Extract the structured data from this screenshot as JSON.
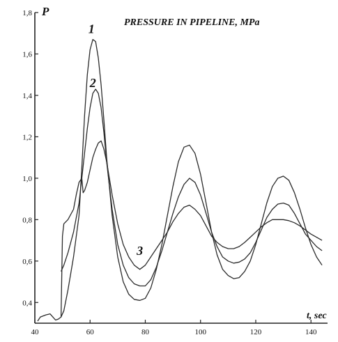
{
  "chart_data": {
    "type": "line",
    "title": "PRESSURE IN PIPELINE, MPa",
    "ylabel": "P",
    "xlabel": "t, sec",
    "xlim": [
      40,
      146
    ],
    "ylim": [
      0.3,
      1.8
    ],
    "x_ticks": [
      40,
      60,
      80,
      100,
      120,
      140
    ],
    "x_tick_labels": [
      "40",
      "60",
      "80",
      "100",
      "120",
      "140"
    ],
    "y_ticks": [
      0.4,
      0.6,
      0.8,
      1.0,
      1.2,
      1.4,
      1.6,
      1.8
    ],
    "y_tick_labels": [
      "0,4",
      "0,6",
      "0,8",
      "1,0",
      "1,2",
      "1,4",
      "1,6",
      "1,8"
    ],
    "grid": false,
    "series": [
      {
        "name": "1",
        "label_at": [
          60.5,
          1.7
        ],
        "x": [
          49.5,
          50.5,
          52,
          54,
          56,
          57,
          58,
          59,
          60,
          61,
          62,
          63,
          64,
          65,
          66,
          68,
          70,
          72,
          74,
          76,
          78,
          80,
          82,
          84,
          86,
          88,
          90,
          92,
          94,
          96,
          98,
          100,
          102,
          104,
          106,
          108,
          110,
          112,
          114,
          116,
          118,
          120,
          122,
          124,
          126,
          128,
          130,
          132,
          134,
          136,
          138,
          140,
          142,
          144
        ],
        "y": [
          0.33,
          0.36,
          0.46,
          0.62,
          0.82,
          1.05,
          1.3,
          1.5,
          1.62,
          1.67,
          1.66,
          1.58,
          1.45,
          1.28,
          1.1,
          0.82,
          0.62,
          0.5,
          0.44,
          0.415,
          0.41,
          0.42,
          0.47,
          0.56,
          0.68,
          0.82,
          0.96,
          1.08,
          1.15,
          1.16,
          1.12,
          1.02,
          0.88,
          0.74,
          0.63,
          0.56,
          0.53,
          0.515,
          0.52,
          0.55,
          0.6,
          0.68,
          0.78,
          0.88,
          0.96,
          1.0,
          1.01,
          0.99,
          0.93,
          0.85,
          0.76,
          0.68,
          0.62,
          0.58
        ]
      },
      {
        "name": "2",
        "label_at": [
          61,
          1.44
        ],
        "x": [
          49.5,
          50.5,
          52,
          54,
          56,
          57,
          58,
          59,
          60,
          61,
          62,
          63,
          64,
          65,
          66,
          68,
          70,
          72,
          74,
          76,
          78,
          80,
          82,
          84,
          86,
          88,
          90,
          92,
          94,
          96,
          98,
          100,
          102,
          104,
          106,
          108,
          110,
          112,
          114,
          116,
          118,
          120,
          122,
          124,
          126,
          128,
          130,
          132,
          134,
          136,
          138,
          140,
          142,
          144
        ],
        "y": [
          0.55,
          0.58,
          0.64,
          0.74,
          0.88,
          1.0,
          1.12,
          1.24,
          1.34,
          1.41,
          1.43,
          1.41,
          1.34,
          1.22,
          1.08,
          0.85,
          0.68,
          0.58,
          0.52,
          0.49,
          0.48,
          0.48,
          0.51,
          0.57,
          0.65,
          0.74,
          0.83,
          0.91,
          0.97,
          1.0,
          0.98,
          0.92,
          0.83,
          0.74,
          0.67,
          0.62,
          0.6,
          0.59,
          0.595,
          0.61,
          0.64,
          0.69,
          0.75,
          0.81,
          0.85,
          0.875,
          0.88,
          0.87,
          0.83,
          0.78,
          0.73,
          0.7,
          0.67,
          0.65
        ]
      },
      {
        "name": "3",
        "label_at": [
          78,
          0.63
        ],
        "x": [
          41,
          42,
          44,
          45.5,
          46.5,
          47.5,
          48.5,
          49.5,
          50,
          50.5,
          52,
          54,
          55,
          56,
          57,
          57.5,
          58,
          59,
          60,
          61,
          62,
          63,
          64,
          65,
          66,
          68,
          70,
          72,
          74,
          76,
          78,
          80,
          82,
          84,
          86,
          88,
          90,
          92,
          94,
          96,
          98,
          100,
          102,
          104,
          106,
          108,
          110,
          112,
          114,
          116,
          118,
          120,
          122,
          124,
          126,
          128,
          130,
          132,
          134,
          136,
          138,
          140,
          142,
          144
        ],
        "y": [
          0.31,
          0.33,
          0.34,
          0.345,
          0.33,
          0.315,
          0.32,
          0.33,
          0.72,
          0.78,
          0.8,
          0.85,
          0.92,
          0.98,
          1.0,
          0.93,
          0.94,
          0.98,
          1.04,
          1.1,
          1.14,
          1.17,
          1.18,
          1.14,
          1.08,
          0.92,
          0.78,
          0.68,
          0.62,
          0.58,
          0.56,
          0.58,
          0.62,
          0.66,
          0.7,
          0.74,
          0.79,
          0.83,
          0.86,
          0.87,
          0.85,
          0.82,
          0.77,
          0.72,
          0.69,
          0.67,
          0.66,
          0.66,
          0.67,
          0.69,
          0.715,
          0.74,
          0.765,
          0.785,
          0.8,
          0.8,
          0.8,
          0.795,
          0.785,
          0.77,
          0.75,
          0.73,
          0.715,
          0.7
        ]
      }
    ]
  }
}
